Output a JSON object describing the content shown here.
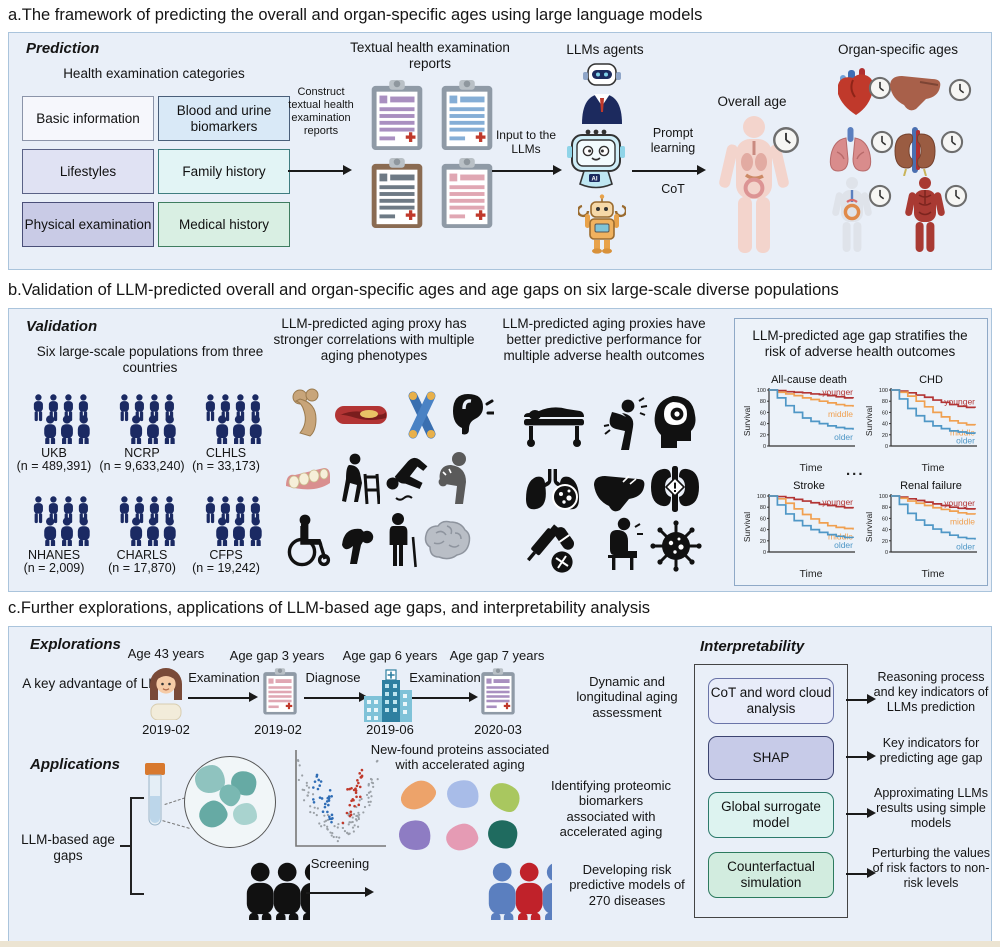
{
  "panel_a": {
    "title": "a.The framework of predicting the overall and organ-specific ages using large language models",
    "section_label": "Prediction",
    "categories_title": "Health examination categories",
    "categories": [
      "Basic information",
      "Blood and urine biomarkers",
      "Lifestyles",
      "Family history",
      "Physical examination",
      "Medical history"
    ],
    "construct_arrow_label": "Construct textual health examination reports",
    "reports_title": "Textual health examination reports",
    "input_arrow_label": "Input to the LLMs",
    "llm_agents_title": "LLMs agents",
    "prompt_arrow_top": "Prompt learning",
    "prompt_arrow_bottom": "CoT",
    "overall_age_title": "Overall age",
    "organ_ages_title": "Organ-specific ages"
  },
  "panel_b": {
    "title": "b.Validation of LLM-predicted overall and organ-specific ages and age gaps on six large-scale diverse populations",
    "section_label": "Validation",
    "populations_title": "Six large-scale populations from three countries",
    "populations": [
      {
        "name": "UKB",
        "n": "(n = 489,391)"
      },
      {
        "name": "NCRP",
        "n": "(n = 9,633,240)"
      },
      {
        "name": "CLHLS",
        "n": "(n = 33,173)"
      },
      {
        "name": "NHANES",
        "n": "(n = 2,009)"
      },
      {
        "name": "CHARLS",
        "n": "(n = 17,870)"
      },
      {
        "name": "CFPS",
        "n": "(n = 19,242)"
      }
    ],
    "phenotypes_title": "LLM-predicted aging proxy has stronger correlations with multiple aging phenotypes",
    "outcomes_title": "LLM-predicted aging proxies have better predictive performance for multiple adverse health outcomes",
    "stratify_title": "LLM-predicted age gap stratifies the risk of adverse health outcomes",
    "ellipsis": "..."
  },
  "panel_c": {
    "title": "c.Further explorations, applications of LLM-based age gaps, and interpretability analysis",
    "explorations_label": "Explorations",
    "advantage_text": "A key advantage of LLMs",
    "timeline": {
      "age_label": "Age 43 years",
      "gap1": "Age gap 3 years",
      "gap2": "Age gap 6 years",
      "gap3": "Age gap 7 years",
      "step1": "Examination",
      "step2": "Diagnose",
      "step3": "Examination",
      "date0": "2019-02",
      "date1": "2019-02",
      "date2": "2019-06",
      "date3": "2020-03"
    },
    "dynamic_text": "Dynamic and longitudinal aging assessment",
    "applications_label": "Applications",
    "age_gaps_label": "LLM-based age gaps",
    "proteins_title": "New-found proteins associated with accelerated aging",
    "proteomic_text": "Identifying proteomic biomarkers associated with accelerated aging",
    "screening_label": "Screening",
    "risk_text": "Developing risk predictive models of 270 diseases",
    "interpretability": {
      "label": "Interpretability",
      "methods": [
        "CoT and word cloud analysis",
        "SHAP",
        "Global surrogate model",
        "Counterfactual simulation"
      ],
      "outputs": [
        "Reasoning process and key indicators of LLMs prediction",
        "Key indicators for predicting age gap",
        "Approximating LLMs results using simple models",
        "Perturbing the values of risk factors to non-risk levels"
      ]
    }
  },
  "chart_data": [
    {
      "type": "line",
      "title": "All-cause death",
      "xlabel": "Time",
      "ylabel": "Survival",
      "ylim": [
        0,
        100
      ],
      "yticks": [
        0,
        20,
        40,
        60,
        80,
        100
      ],
      "grid": false,
      "legend_position": "inline",
      "series": [
        {
          "name": "younger",
          "color": "#b23434",
          "values": [
            100,
            99,
            97,
            96,
            95,
            93,
            92,
            90,
            88,
            86,
            85
          ]
        },
        {
          "name": "middle",
          "color": "#f0a050",
          "values": [
            100,
            96,
            93,
            90,
            86,
            83,
            80,
            77,
            74,
            72,
            70
          ]
        },
        {
          "name": "older",
          "color": "#4f97c6",
          "values": [
            100,
            86,
            72,
            60,
            50,
            44,
            40,
            36,
            33,
            31,
            29
          ]
        }
      ]
    },
    {
      "type": "line",
      "title": "CHD",
      "xlabel": "Time",
      "ylabel": "Survival",
      "ylim": [
        0,
        100
      ],
      "yticks": [
        0,
        20,
        40,
        60,
        80,
        100
      ],
      "grid": false,
      "legend_position": "inline",
      "series": [
        {
          "name": "younger",
          "color": "#b23434",
          "values": [
            100,
            98,
            95,
            91,
            87,
            82,
            78,
            74,
            71,
            69,
            68
          ]
        },
        {
          "name": "middle",
          "color": "#f0a050",
          "values": [
            100,
            96,
            89,
            80,
            70,
            60,
            52,
            45,
            41,
            38,
            37
          ]
        },
        {
          "name": "older",
          "color": "#4f97c6",
          "values": [
            100,
            84,
            67,
            54,
            44,
            36,
            31,
            27,
            25,
            23,
            22
          ]
        }
      ]
    },
    {
      "type": "line",
      "title": "Stroke",
      "xlabel": "Time",
      "ylabel": "Survival",
      "ylim": [
        0,
        100
      ],
      "yticks": [
        0,
        20,
        40,
        60,
        80,
        100
      ],
      "grid": false,
      "legend_position": "inline",
      "series": [
        {
          "name": "younger",
          "color": "#b23434",
          "values": [
            100,
            99,
            97,
            94,
            91,
            88,
            85,
            83,
            81,
            79,
            78
          ]
        },
        {
          "name": "middle",
          "color": "#f0a050",
          "values": [
            100,
            95,
            87,
            77,
            67,
            59,
            52,
            47,
            44,
            42,
            40
          ]
        },
        {
          "name": "older",
          "color": "#4f97c6",
          "values": [
            100,
            84,
            68,
            56,
            47,
            40,
            35,
            31,
            28,
            26,
            25
          ]
        }
      ]
    },
    {
      "type": "line",
      "title": "Renal failure",
      "xlabel": "Time",
      "ylabel": "Survival",
      "ylim": [
        0,
        100
      ],
      "yticks": [
        0,
        20,
        40,
        60,
        80,
        100
      ],
      "grid": false,
      "legend_position": "inline",
      "series": [
        {
          "name": "younger",
          "color": "#b23434",
          "values": [
            100,
            98,
            95,
            92,
            89,
            86,
            83,
            80,
            78,
            77,
            76
          ]
        },
        {
          "name": "middle",
          "color": "#f0a050",
          "values": [
            100,
            96,
            91,
            87,
            83,
            79,
            76,
            73,
            70,
            68,
            67
          ]
        },
        {
          "name": "older",
          "color": "#4f97c6",
          "values": [
            100,
            85,
            69,
            57,
            48,
            41,
            35,
            30,
            26,
            24,
            22
          ]
        }
      ]
    }
  ],
  "colors": {
    "panel_bg": "#e9eff8",
    "panel_border": "#aac4dc",
    "crowd_navy": "#1b2a63",
    "younger": "#b23434",
    "middle": "#f0a050",
    "older": "#4f97c6",
    "screened_people": [
      "#5b7fbf",
      "#c0222a",
      "#5b7fbf",
      "#e9b45b",
      "#5b7fbf",
      "#c0222a"
    ],
    "protein_blobs": [
      "#eda36a",
      "#a8bce8",
      "#a9c75f",
      "#8e7cc3",
      "#e59bb4",
      "#1f6b5f"
    ]
  },
  "icon_names": [
    "clipboard-report-icon",
    "robot-agent-icon",
    "robot-ai-icon",
    "robot-toy-icon",
    "human-body-icon",
    "clock-icon",
    "heart-icon",
    "liver-icon",
    "lungs-icon",
    "kidneys-icon",
    "digestive-body-icon",
    "muscular-body-icon",
    "crowd-icon",
    "bone-icon",
    "artery-icon",
    "chromosome-icon",
    "ear-icon",
    "teeth-icon",
    "walker-person-icon",
    "falling-person-icon",
    "back-pain-icon",
    "wheelchair-icon",
    "hunched-person-icon",
    "cane-person-icon",
    "brain-icon",
    "death-bed-icon",
    "chest-pain-icon",
    "stroke-head-icon",
    "lung-infection-icon",
    "liver-disease-icon",
    "kidney-failure-icon",
    "medication-icon",
    "sick-sitting-icon",
    "virus-icon",
    "woman-avatar-icon",
    "document-icon",
    "hospital-icon",
    "test-tube-icon",
    "magnifier-proteins-icon",
    "volcano-plot",
    "person-icon",
    "bracket"
  ]
}
